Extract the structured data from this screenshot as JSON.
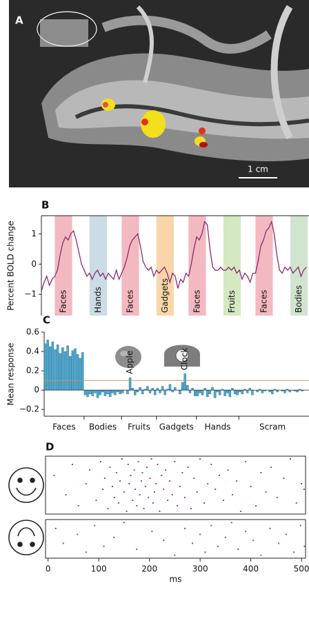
{
  "chart_data": [
    {
      "type": "image",
      "label": "A",
      "scale_label": "1 cm"
    },
    {
      "type": "line",
      "label": "B",
      "ylabel": "Percent BOLD change",
      "color": "#8b2a6e",
      "ylim": [
        -1.7,
        1.6
      ],
      "yticks": [
        1,
        0,
        {
          "value": -1,
          "label": "−1"
        }
      ],
      "bands": [
        {
          "label": "Faces",
          "color": "#f3b9c0",
          "start": 5,
          "end": 11.5
        },
        {
          "label": "Hands",
          "color": "#cadce6",
          "start": 18,
          "end": 24.5
        },
        {
          "label": "Faces",
          "color": "#f3b9c0",
          "start": 30,
          "end": 36.5
        },
        {
          "label": "Gadgets",
          "color": "#f9d6aa",
          "start": 43,
          "end": 49.5
        },
        {
          "label": "Faces",
          "color": "#f3b9c0",
          "start": 55,
          "end": 61.5
        },
        {
          "label": "Fruits",
          "color": "#d4e8c2",
          "start": 68,
          "end": 74.5
        },
        {
          "label": "Faces",
          "color": "#f3b9c0",
          "start": 80,
          "end": 86.5
        },
        {
          "label": "Bodies",
          "color": "#d0e4d0",
          "start": 93,
          "end": 99.5
        }
      ],
      "values": [
        -0.9,
        -0.6,
        -0.4,
        -0.7,
        -0.5,
        -0.4,
        -0.2,
        0.3,
        0.7,
        0.9,
        0.8,
        1.0,
        1.1,
        0.8,
        0.4,
        0.0,
        -0.2,
        -0.4,
        -0.3,
        -0.5,
        -0.3,
        -0.2,
        -0.4,
        -0.3,
        -0.5,
        -0.3,
        -0.4,
        -0.5,
        -0.2,
        -0.5,
        -0.3,
        -0.1,
        0.2,
        0.6,
        0.8,
        0.9,
        1.0,
        0.6,
        0.1,
        -0.1,
        -0.2,
        -0.1,
        -0.4,
        -0.2,
        -0.3,
        -0.2,
        -0.1,
        -0.3,
        -0.6,
        -0.3,
        -0.4,
        -0.8,
        -0.5,
        -0.6,
        -0.3,
        -0.4,
        0.0,
        0.5,
        0.9,
        0.8,
        1.0,
        1.4,
        1.3,
        0.5,
        -0.1,
        -0.2,
        -0.2,
        -0.1,
        -0.2,
        -0.2,
        -0.1,
        -0.2,
        -0.1,
        -0.3,
        -0.2,
        -0.5,
        -0.3,
        -0.4,
        -0.6,
        -0.3,
        -0.3,
        0.1,
        0.6,
        0.8,
        1.1,
        1.2,
        1.4,
        1.0,
        0.3,
        -0.2,
        -0.3,
        -0.1,
        -0.2,
        -0.1,
        -0.3,
        -0.2,
        -0.1,
        -0.4,
        -0.2,
        -0.1
      ]
    },
    {
      "type": "bar",
      "label": "C",
      "ylabel": "Mean response",
      "color": "#4da6cf",
      "ylim": [
        -0.27,
        0.6
      ],
      "yticks": [
        0.6,
        0.4,
        0.2,
        0,
        {
          "value": -0.2,
          "label": "−0.2"
        }
      ],
      "threshold": 0.1,
      "threshold_color": "#c8955a",
      "annotations": [
        {
          "text": "Apple",
          "index": 34
        },
        {
          "text": "Clock",
          "index": 56
        }
      ],
      "categories": [
        "Faces",
        "Faces",
        "Faces",
        "Faces",
        "Faces",
        "Faces",
        "Faces",
        "Faces",
        "Faces",
        "Faces",
        "Faces",
        "Faces",
        "Faces",
        "Faces",
        "Faces",
        "Faces",
        "Bodies",
        "Bodies",
        "Bodies",
        "Bodies",
        "Bodies",
        "Bodies",
        "Bodies",
        "Bodies",
        "Bodies",
        "Bodies",
        "Bodies",
        "Bodies",
        "Bodies",
        "Bodies",
        "Bodies",
        "Fruits",
        "Fruits",
        "Fruits",
        "Fruits",
        "Fruits",
        "Fruits",
        "Fruits",
        "Fruits",
        "Fruits",
        "Fruits",
        "Fruits",
        "Fruits",
        "Fruits",
        "Fruits",
        "Gadgets",
        "Gadgets",
        "Gadgets",
        "Gadgets",
        "Gadgets",
        "Gadgets",
        "Gadgets",
        "Gadgets",
        "Gadgets",
        "Gadgets",
        "Gadgets",
        "Gadgets",
        "Gadgets",
        "Gadgets",
        "Gadgets",
        "Gadgets",
        "Hands",
        "Hands",
        "Hands",
        "Hands",
        "Hands",
        "Hands",
        "Hands",
        "Hands",
        "Hands",
        "Hands",
        "Hands",
        "Hands",
        "Hands",
        "Hands",
        "Hands",
        "Hands",
        "Hands",
        "Scram",
        "Scram",
        "Scram",
        "Scram",
        "Scram",
        "Scram",
        "Scram",
        "Scram",
        "Scram",
        "Scram",
        "Scram",
        "Scram",
        "Scram",
        "Scram",
        "Scram",
        "Scram",
        "Scram",
        "Scram",
        "Scram",
        "Scram",
        "Scram",
        "Scram",
        "Scram",
        "Scram",
        "Scram",
        "Scram",
        "Scram"
      ],
      "values": [
        0.48,
        0.52,
        0.45,
        0.5,
        0.42,
        0.47,
        0.38,
        0.44,
        0.4,
        0.46,
        0.35,
        0.41,
        0.43,
        0.37,
        0.33,
        0.39,
        -0.05,
        -0.07,
        -0.04,
        -0.06,
        -0.03,
        -0.08,
        -0.05,
        -0.02,
        -0.06,
        -0.04,
        -0.07,
        -0.03,
        -0.05,
        -0.02,
        -0.04,
        -0.03,
        0,
        -0.04,
        0.13,
        0.02,
        -0.05,
        -0.02,
        0.03,
        -0.04,
        0.01,
        0.04,
        -0.03,
        0.02,
        -0.05,
        0.02,
        -0.03,
        0.04,
        -0.05,
        0.01,
        0.06,
        -0.02,
        0.03,
        0,
        -0.04,
        0.08,
        0.17,
        0.05,
        -0.03,
        0.02,
        -0.06,
        -0.06,
        -0.03,
        -0.05,
        0.02,
        -0.07,
        -0.04,
        0.03,
        -0.08,
        -0.02,
        -0.05,
        0.01,
        -0.06,
        -0.03,
        -0.07,
        0.02,
        -0.04,
        -0.05,
        -0.02,
        -0.04,
        0.01,
        -0.03,
        0.02,
        -0.05,
        0,
        -0.02,
        0.01,
        -0.03,
        -0.01,
        0,
        -0.02,
        -0.04,
        0.01,
        -0.02,
        0,
        -0.01,
        -0.03,
        0.01,
        -0.02,
        0,
        -0.01,
        -0.02,
        0.01,
        -0.01,
        0
      ]
    },
    {
      "type": "raster",
      "label": "D",
      "xlabel": "ms",
      "color": "#a23c98",
      "xlim": [
        -5,
        508
      ],
      "xticks": [
        0,
        100,
        200,
        300,
        400,
        500
      ],
      "rasters": [
        {
          "x": [
            12,
            35,
            48,
            60,
            75,
            82,
            95,
            104,
            108,
            112,
            118,
            122,
            127,
            131,
            135,
            139,
            142,
            146,
            150,
            155,
            158,
            160,
            163,
            167,
            170,
            172,
            175,
            178,
            181,
            184,
            186,
            189,
            192,
            195,
            198,
            201,
            204,
            207,
            210,
            213,
            216,
            220,
            224,
            228,
            232,
            236,
            240,
            245,
            250,
            255,
            260,
            265,
            270,
            276,
            282,
            288,
            294,
            300,
            308,
            315,
            322,
            330,
            338,
            346,
            355,
            364,
            372,
            380,
            390,
            400,
            410,
            420,
            430,
            440,
            452,
            465,
            478,
            490,
            500,
            505
          ],
          "trial": [
            7,
            14,
            3,
            18,
            10,
            5,
            16,
            2,
            12,
            8,
            19,
            4,
            11,
            15,
            6,
            17,
            9,
            1,
            13,
            20,
            3,
            10,
            7,
            16,
            5,
            12,
            18,
            2,
            14,
            9,
            6,
            19,
            11,
            4,
            15,
            8,
            1,
            17,
            13,
            10,
            3,
            20,
            7,
            12,
            5,
            16,
            9,
            14,
            2,
            18,
            11,
            6,
            15,
            4,
            19,
            8,
            13,
            1,
            17,
            10,
            3,
            12,
            7,
            16,
            5,
            14,
            9,
            20,
            2,
            11,
            18,
            6,
            13,
            4,
            15,
            8,
            1,
            17,
            10,
            12
          ]
        },
        {
          "x": [
            15,
            30,
            58,
            75,
            92,
            110,
            130,
            150,
            175,
            205,
            228,
            250,
            270,
            285,
            300,
            310,
            322,
            335,
            350,
            362,
            375,
            390,
            405,
            420,
            438,
            455,
            470,
            485,
            498,
            506
          ],
          "trial": [
            3,
            8,
            5,
            11,
            2,
            9,
            6,
            1,
            10,
            4,
            7,
            12,
            3,
            8,
            5,
            11,
            2,
            9,
            6,
            1,
            10,
            4,
            7,
            12,
            3,
            8,
            5,
            11,
            2,
            9
          ]
        }
      ]
    }
  ]
}
